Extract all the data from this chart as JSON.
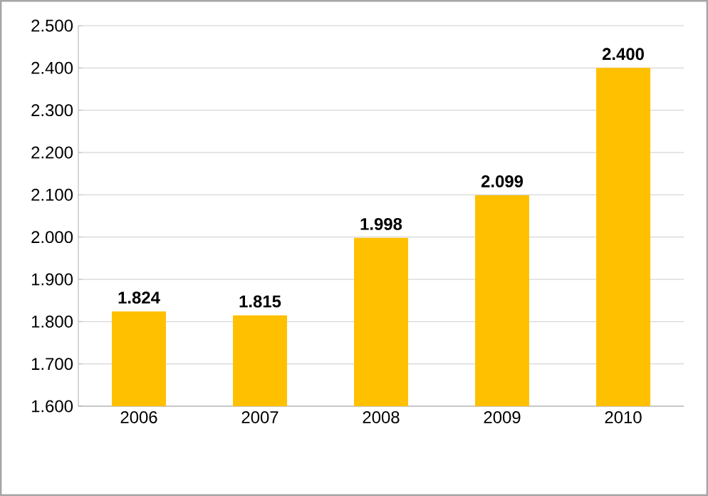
{
  "chart_data": {
    "type": "bar",
    "categories": [
      "2006",
      "2007",
      "2008",
      "2009",
      "2010"
    ],
    "values": [
      1.824,
      1.815,
      1.998,
      2.099,
      2.4
    ],
    "value_labels": [
      "1.824",
      "1.815",
      "1.998",
      "2.099",
      "2.400"
    ],
    "color": "#ffc000",
    "ylim": [
      1.6,
      2.5
    ],
    "yticks": [
      {
        "value": 1.6,
        "label": "1.600"
      },
      {
        "value": 1.7,
        "label": "1.700"
      },
      {
        "value": 1.8,
        "label": "1.800"
      },
      {
        "value": 1.9,
        "label": "1.900"
      },
      {
        "value": 2.0,
        "label": "2.000"
      },
      {
        "value": 2.1,
        "label": "2.100"
      },
      {
        "value": 2.2,
        "label": "2.200"
      },
      {
        "value": 2.3,
        "label": "2.300"
      },
      {
        "value": 2.4,
        "label": "2.400"
      },
      {
        "value": 2.5,
        "label": "2.500"
      }
    ],
    "grid": "y"
  }
}
